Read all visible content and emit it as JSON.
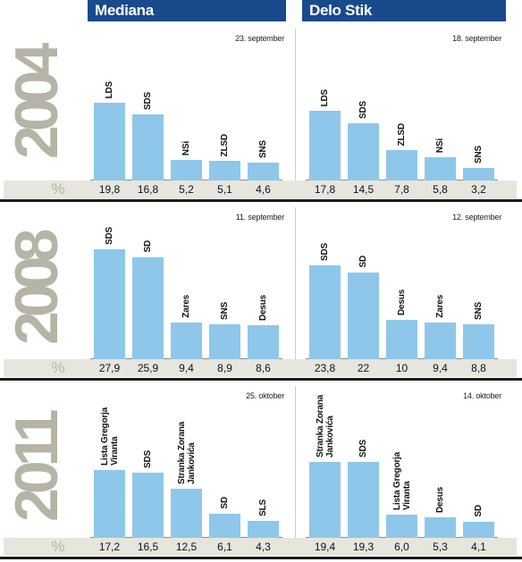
{
  "header": {
    "left": "Mediana",
    "right": "Delo Stik"
  },
  "percent_symbol": "%",
  "chart_data": [
    {
      "type": "bar",
      "year": "2004",
      "pollster": "Mediana",
      "date": "23. september",
      "categories": [
        "LDS",
        "SDS",
        "NSi",
        "ZLSD",
        "SNS"
      ],
      "values": [
        19.8,
        16.8,
        5.2,
        5.1,
        4.6
      ],
      "value_labels": [
        "19,8",
        "16,8",
        "5,2",
        "5,1",
        "4,6"
      ]
    },
    {
      "type": "bar",
      "year": "2004",
      "pollster": "Delo Stik",
      "date": "18. september",
      "categories": [
        "LDS",
        "SDS",
        "ZLSD",
        "NSi",
        "SNS"
      ],
      "values": [
        17.8,
        14.5,
        7.8,
        5.8,
        3.2
      ],
      "value_labels": [
        "17,8",
        "14,5",
        "7,8",
        "5,8",
        "3,2"
      ]
    },
    {
      "type": "bar",
      "year": "2008",
      "pollster": "Mediana",
      "date": "11. september",
      "categories": [
        "SDS",
        "SD",
        "Zares",
        "SNS",
        "Desus"
      ],
      "values": [
        27.9,
        25.9,
        9.4,
        8.9,
        8.6
      ],
      "value_labels": [
        "27,9",
        "25,9",
        "9,4",
        "8,9",
        "8,6"
      ]
    },
    {
      "type": "bar",
      "year": "2008",
      "pollster": "Delo Stik",
      "date": "12. september",
      "categories": [
        "SDS",
        "SD",
        "Desus",
        "Zares",
        "SNS"
      ],
      "values": [
        23.8,
        22,
        10,
        9.4,
        8.8
      ],
      "value_labels": [
        "23,8",
        "22",
        "10",
        "9,4",
        "8,8"
      ]
    },
    {
      "type": "bar",
      "year": "2011",
      "pollster": "Mediana",
      "date": "25. oktober",
      "categories": [
        "Lista Gregorja\nViranta",
        "SDS",
        "Stranka Zorana\nJankovića",
        "SD",
        "SLS"
      ],
      "values": [
        17.2,
        16.5,
        12.5,
        6.1,
        4.3
      ],
      "value_labels": [
        "17,2",
        "16,5",
        "12,5",
        "6,1",
        "4,3"
      ]
    },
    {
      "type": "bar",
      "year": "2011",
      "pollster": "Delo Stik",
      "date": "14. oktober",
      "categories": [
        "Stranka Zorana\nJankovića",
        "SDS",
        "Lista Gregorja\nViranta",
        "Desus",
        "SD"
      ],
      "values": [
        19.4,
        19.3,
        6.0,
        5.3,
        4.1
      ],
      "value_labels": [
        "19,4",
        "19,3",
        "6,0",
        "5,3",
        "4,1"
      ]
    }
  ]
}
